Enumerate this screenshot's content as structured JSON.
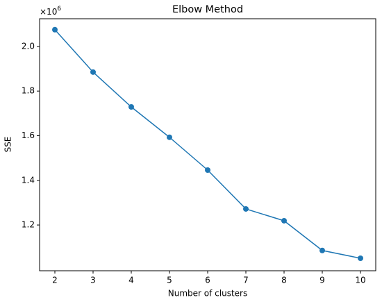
{
  "chart_data": {
    "type": "line",
    "title": "Elbow Method",
    "x_label": "Number of clusters",
    "y_label": "SSE",
    "y_offset_base": "×10",
    "y_offset_exponent": "6",
    "x": [
      2,
      3,
      4,
      5,
      6,
      7,
      8,
      9,
      10
    ],
    "series": [
      {
        "color": "#1f77b4",
        "values": [
          2.075,
          1.885,
          1.729,
          1.593,
          1.446,
          1.272,
          1.219,
          1.086,
          1.051
        ]
      }
    ],
    "xlim": [
      1.6,
      10.4
    ],
    "xticks": [
      2,
      3,
      4,
      5,
      6,
      7,
      8,
      9,
      10
    ],
    "ylim": [
      0.995,
      2.124
    ],
    "yticks": [
      {
        "value": 1.2,
        "label": "1.2"
      },
      {
        "value": 1.4,
        "label": "1.4"
      },
      {
        "value": 1.6,
        "label": "1.6"
      },
      {
        "value": 1.8,
        "label": "1.8"
      },
      {
        "value": 2,
        "label": "2.0"
      }
    ],
    "grid": false
  }
}
